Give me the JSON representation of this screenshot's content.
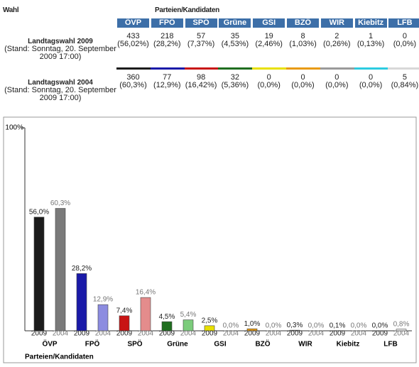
{
  "table": {
    "header": {
      "wahl": "Wahl",
      "parties_title": "Parteien/Kandidaten"
    },
    "parties": [
      "ÖVP",
      "FPÖ",
      "SPÖ",
      "Grüne",
      "GSI",
      "BZÖ",
      "WIR",
      "Kiebitz",
      "LFB"
    ],
    "rows": [
      {
        "label": "Landtagswahl 2009",
        "stand": "(Stand: Sonntag, 20. September 2009 17:00)",
        "cells": [
          [
            "433",
            "(56,02%)"
          ],
          [
            "218",
            "(28,2%)"
          ],
          [
            "57",
            "(7,37%)"
          ],
          [
            "35",
            "(4,53%)"
          ],
          [
            "19",
            "(2,46%)"
          ],
          [
            "8",
            "(1,03%)"
          ],
          [
            "2",
            "(0,26%)"
          ],
          [
            "1",
            "(0,13%)"
          ],
          [
            "0",
            "(0,0%)"
          ]
        ]
      },
      {
        "label": "Landtagswahl 2004",
        "stand": "(Stand: Sonntag, 20. September 2009 17:00)",
        "cells": [
          [
            "360",
            "(60,3%)"
          ],
          [
            "77",
            "(12,9%)"
          ],
          [
            "98",
            "(16,42%)"
          ],
          [
            "32",
            "(5,36%)"
          ],
          [
            "0",
            "(0,0%)"
          ],
          [
            "0",
            "(0,0%)"
          ],
          [
            "0",
            "(0,0%)"
          ],
          [
            "0",
            "(0,0%)"
          ],
          [
            "5",
            "(0,84%)"
          ]
        ]
      }
    ]
  },
  "chart_data": {
    "type": "bar",
    "x_label": "Parteien/Kandidaten",
    "categories": [
      "ÖVP",
      "FPÖ",
      "SPÖ",
      "Grüne",
      "GSI",
      "BZÖ",
      "WIR",
      "Kiebitz",
      "LFB"
    ],
    "ylim": [
      0,
      100
    ],
    "yticks": [
      {
        "value": 100,
        "label": "100%"
      }
    ],
    "series": [
      {
        "name": "2009",
        "colors": [
          "#1c1c1c",
          "#1a1aa8",
          "#c81414",
          "#1f6e1f",
          "#e8e000",
          "#e89a10",
          "#9a9a9a",
          "#2ccbe0",
          "#d8d8d8"
        ],
        "values": [
          56.0,
          28.2,
          7.4,
          4.5,
          2.5,
          1.0,
          0.3,
          0.1,
          0.0
        ],
        "value_labels": [
          "56,0%",
          "28,2%",
          "7,4%",
          "4,5%",
          "2,5%",
          "1,0%",
          "0,3%",
          "0,1%",
          "0,0%"
        ]
      },
      {
        "name": "2004",
        "colors": [
          "#7a7a7a",
          "#8c8ce0",
          "#e48c8c",
          "#7ccc7c",
          "#f0ee90",
          "#f2c890",
          "#cfcfcf",
          "#98e6f0",
          "#eeeeee"
        ],
        "values": [
          60.3,
          12.9,
          16.4,
          5.4,
          0.0,
          0.0,
          0.0,
          0.0,
          0.8
        ],
        "value_labels": [
          "60,3%",
          "12,9%",
          "16,4%",
          "5,4%",
          "0,0%",
          "0,0%",
          "0,0%",
          "0,0%",
          "0,8%"
        ]
      }
    ]
  }
}
